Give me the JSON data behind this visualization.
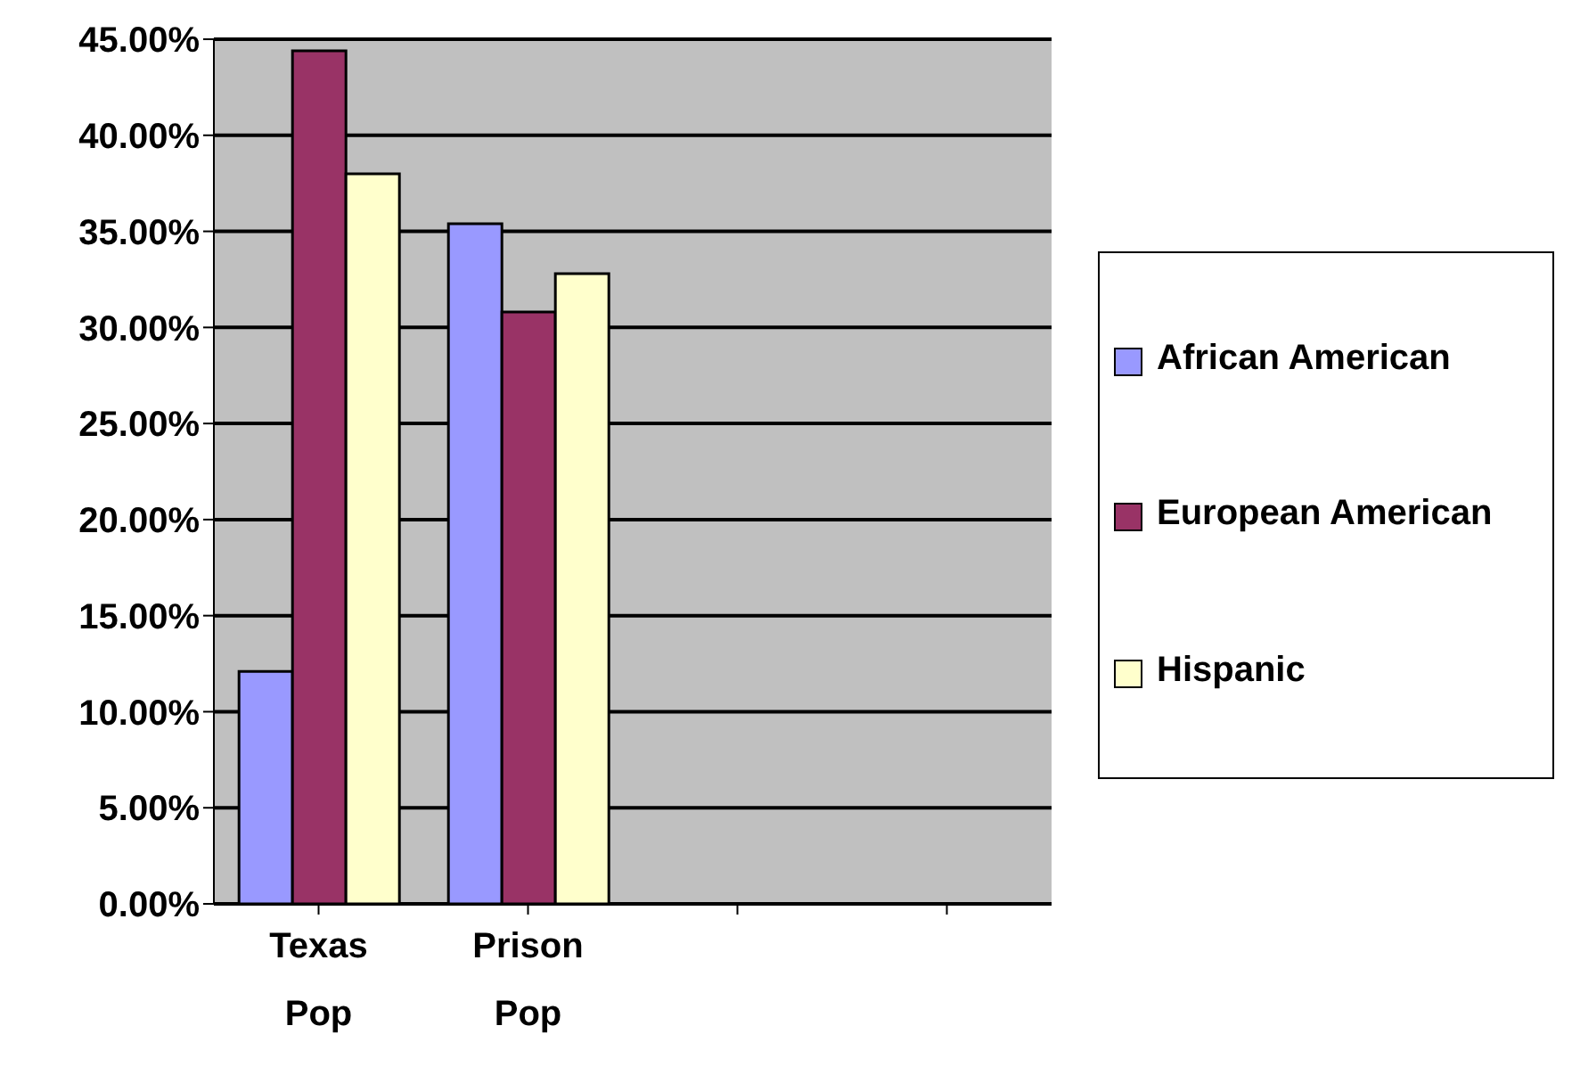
{
  "chart_data": {
    "type": "bar",
    "categories": [
      "Texas Pop",
      "Prison Pop",
      null,
      null
    ],
    "series": [
      {
        "name": "African American",
        "color": "#9999ff",
        "values": [
          12.1,
          35.4,
          null,
          null
        ]
      },
      {
        "name": "European American",
        "color": "#993366",
        "values": [
          44.4,
          30.8,
          null,
          null
        ]
      },
      {
        "name": "Hispanic",
        "color": "#ffffcc",
        "values": [
          38.0,
          32.8,
          null,
          null
        ]
      }
    ],
    "ylim": [
      0,
      45
    ],
    "yticks": [
      {
        "value": 0,
        "label": "0.00%"
      },
      {
        "value": 5,
        "label": "5.00%"
      },
      {
        "value": 10,
        "label": "10.00%"
      },
      {
        "value": 15,
        "label": "15.00%"
      },
      {
        "value": 20,
        "label": "20.00%"
      },
      {
        "value": 25,
        "label": "25.00%"
      },
      {
        "value": 30,
        "label": "30.00%"
      },
      {
        "value": 35,
        "label": "35.00%"
      },
      {
        "value": 40,
        "label": "40.00%"
      },
      {
        "value": 45,
        "label": "45.00%"
      }
    ],
    "grid": "y",
    "legend": "right"
  }
}
